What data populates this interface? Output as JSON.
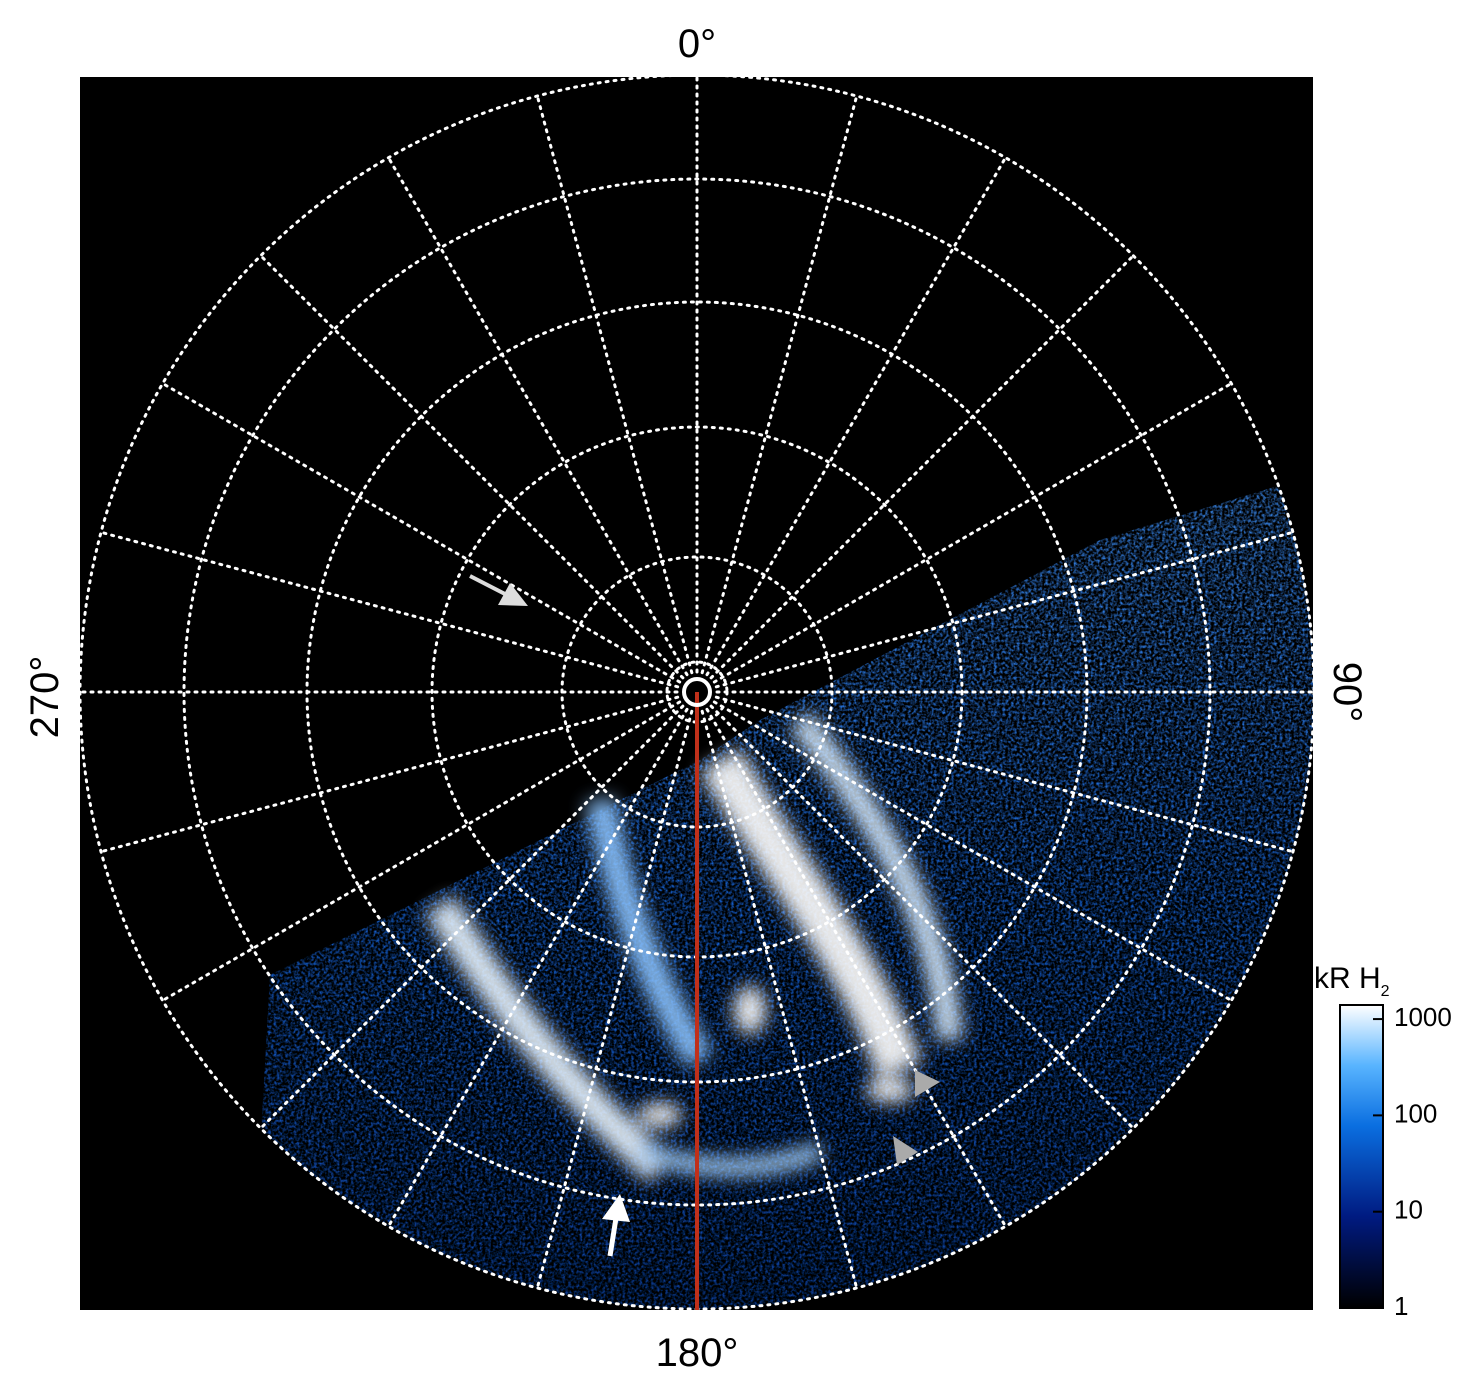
{
  "figure": {
    "azimuth_labels": {
      "top": "0°",
      "right": "90°",
      "bottom": "180°",
      "left": "270°"
    },
    "colorbar": {
      "label": "kR H",
      "label_subscript": "2",
      "log": true,
      "lim": [
        1,
        1400
      ],
      "ticks": [
        1,
        10,
        100,
        1000
      ]
    }
  }
}
